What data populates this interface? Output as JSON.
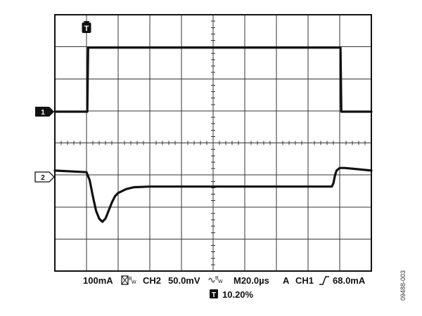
{
  "chart_data": {
    "type": "line",
    "title": "",
    "xlabel": "",
    "ylabel": "",
    "grid": true,
    "grid_divisions": {
      "x": 10,
      "y": 8
    },
    "xlim": [
      0,
      200
    ],
    "x_unit": "µs",
    "series": [
      {
        "channel": "1",
        "marker_label": "1",
        "scale": "100mA/div",
        "marker_level_div": 0,
        "color": "#111111",
        "x": [
          0,
          20.5,
          21.0,
          180.5,
          181.0,
          200
        ],
        "y": [
          0,
          0,
          2.0,
          2.0,
          0,
          0
        ]
      },
      {
        "channel": "2",
        "marker_label": "2",
        "scale": "50.0mV/div",
        "marker_level_div": 0,
        "color": "#111111",
        "x": [
          0,
          20,
          22,
          24,
          26,
          28,
          30,
          32,
          34,
          36,
          38,
          40,
          45,
          50,
          60,
          70,
          80,
          90,
          100,
          110,
          120,
          130,
          140,
          150,
          160,
          170,
          175,
          176,
          177,
          178,
          180,
          183,
          190,
          200
        ],
        "y": [
          0.2,
          0.15,
          -0.1,
          -0.6,
          -1.05,
          -1.3,
          -1.4,
          -1.3,
          -1.05,
          -0.8,
          -0.6,
          -0.5,
          -0.38,
          -0.32,
          -0.3,
          -0.3,
          -0.3,
          -0.3,
          -0.3,
          -0.3,
          -0.3,
          -0.3,
          -0.3,
          -0.3,
          -0.3,
          -0.3,
          -0.3,
          -0.2,
          0.05,
          0.2,
          0.28,
          0.28,
          0.25,
          0.2
        ]
      }
    ],
    "trigger": {
      "marker": "T",
      "position_div": 1,
      "position_text": "10.20%",
      "source": "CH1",
      "slope": "rising",
      "level": "68.0mA"
    }
  },
  "status_bar": {
    "ch1_scale": "100mA",
    "ch1_bw": "B",
    "ch1_bw_sub": "W",
    "ch2_label": "CH2",
    "ch2_scale": "50.0mV",
    "ch2_bw": "B",
    "ch2_bw_sub": "W",
    "time_label": "M20.0µs",
    "trigger_mode": "A",
    "trigger_source": "CH1",
    "trigger_level": "68.0mA",
    "trigger_marker": "T",
    "trigger_position": "10.20%"
  },
  "figure_id": "09488-003"
}
